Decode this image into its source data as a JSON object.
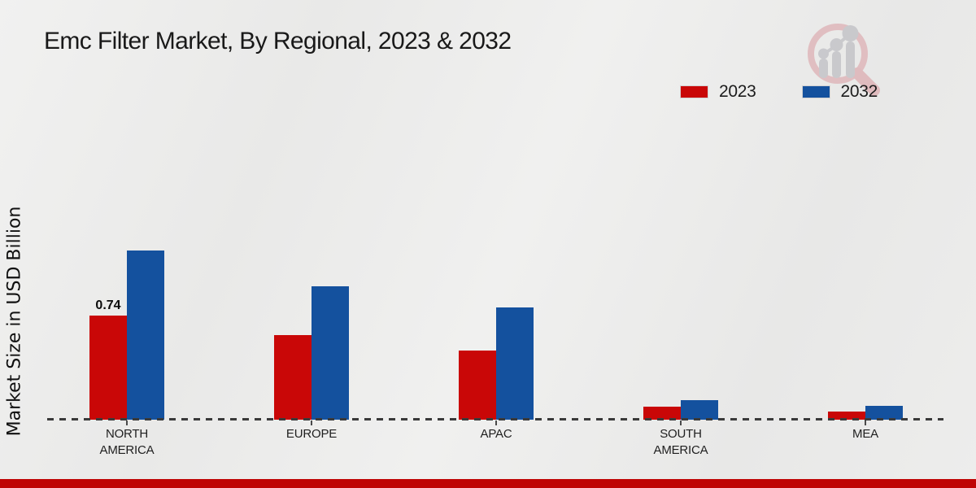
{
  "title": "Emc Filter Market, By Regional, 2023 & 2032",
  "y_axis_label": "Market Size in USD Billion",
  "legend": {
    "items": [
      {
        "label": "2023",
        "color": "#c90707"
      },
      {
        "label": "2032",
        "color": "#14519e"
      }
    ]
  },
  "chart_data": {
    "type": "bar",
    "title": "Emc Filter Market, By Regional, 2023 & 2032",
    "ylabel": "Market Size in USD Billion",
    "xlabel": "",
    "categories": [
      "NORTH AMERICA",
      "EUROPE",
      "APAC",
      "SOUTH AMERICA",
      "MEA"
    ],
    "series": [
      {
        "name": "2023",
        "color": "#c90707",
        "values": [
          0.74,
          0.6,
          0.49,
          0.09,
          0.06
        ]
      },
      {
        "name": "2032",
        "color": "#14519e",
        "values": [
          1.2,
          0.95,
          0.8,
          0.14,
          0.1
        ]
      }
    ],
    "annotations": [
      {
        "category_index": 0,
        "series_index": 0,
        "text": "0.74"
      }
    ],
    "ylim": [
      0,
      1.3
    ],
    "grid": false,
    "legend_position": "top-right",
    "baseline_style": "dashed",
    "unit": "USD Billion"
  },
  "logo": {
    "name": "market-research-magnifier-logo"
  },
  "footer": {
    "color": "#bf0404"
  }
}
